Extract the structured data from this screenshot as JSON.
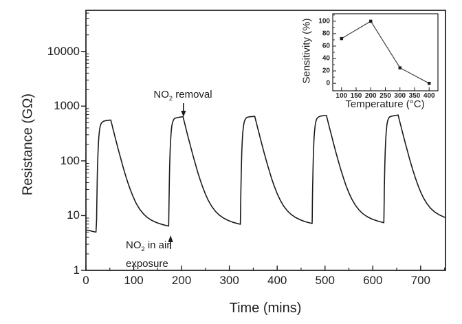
{
  "figure": {
    "background": "#ffffff",
    "line_color": "#1a1a1a",
    "inset_line_color": "#3f3f3f",
    "text_color": "#1f1f1f"
  },
  "chart_data": [
    {
      "id": "main",
      "type": "line",
      "title": "",
      "xlabel": "Time (mins)",
      "ylabel": "Resistance (GΩ)",
      "x_range": [
        0,
        752
      ],
      "x_major_ticks": [
        0,
        100,
        200,
        300,
        400,
        500,
        600,
        700
      ],
      "x_minor_ticks": [
        50,
        150,
        250,
        350,
        450,
        550,
        650,
        750
      ],
      "y_scale": "log",
      "y_major_ticks": [
        1,
        10,
        100,
        1000,
        10000
      ],
      "y_log_range": [
        0,
        4.75
      ],
      "grid": false,
      "legend": "none",
      "series": [
        {
          "name": "resistance",
          "unit": "GΩ",
          "description": "Five NO2 exposure/removal cycles; resistance rises sharply on NO2 exposure, plateaus ~30 min, then decays exponentially back toward baseline after NO2 removal.",
          "cycles": [
            {
              "t_rise": 22,
              "t_fall": 52,
              "peak": 555
            },
            {
              "t_rise": 173,
              "t_fall": 203,
              "peak": 640
            },
            {
              "t_rise": 323,
              "t_fall": 353,
              "peak": 655
            },
            {
              "t_rise": 473,
              "t_fall": 503,
              "peak": 675
            },
            {
              "t_rise": 623,
              "t_fall": 653,
              "peak": 685
            }
          ],
          "baselines": [
            5.5,
            5.3,
            5.6,
            5.8,
            6.0,
            6.8
          ],
          "rise": {
            "tau_log": 2.5
          },
          "decay": {
            "tau_fast": 12,
            "tau_slow": 45,
            "w_slow": 0.03
          },
          "t_end": 752
        }
      ],
      "annotations": {
        "removal": {
          "pre": "NO",
          "sub": "2",
          "post": " removal",
          "arrow": "down",
          "t": 204
        },
        "exposure": {
          "pre": "NO",
          "sub": "2",
          "post": " in air",
          "line2": "exposure",
          "arrow": "up",
          "t": 177
        }
      }
    },
    {
      "id": "inset",
      "type": "line",
      "xlabel": "Temperature (°C)",
      "ylabel": "Sensitivity (%)",
      "x": [
        100,
        200,
        300,
        400
      ],
      "y": [
        72,
        100,
        25,
        0
      ],
      "x_range": [
        70,
        430
      ],
      "y_range": [
        -12,
        112
      ],
      "x_major_ticks": [
        100,
        150,
        200,
        250,
        300,
        350,
        400
      ],
      "y_major_ticks": [
        0,
        20,
        40,
        60,
        80,
        100
      ],
      "y_minor_ticks": [
        10,
        30,
        50,
        70,
        90,
        110
      ],
      "marker": "square",
      "legend": "none"
    }
  ]
}
